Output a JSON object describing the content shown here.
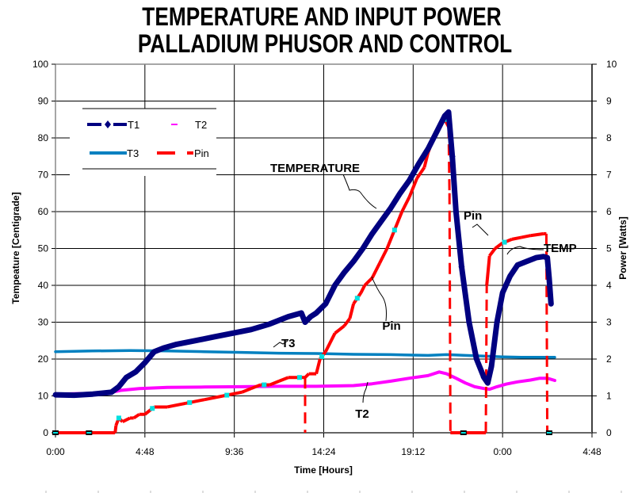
{
  "chart_data": {
    "type": "line",
    "title": [
      "TEMPERATURE AND INPUT POWER",
      "PALLADIUM PHUSOR AND CONTROL"
    ],
    "xlabel": "Time [Hours]",
    "ylabel": "Tempeature [Centigrade]",
    "y2label": "Power [Watts]",
    "xlim": [
      0,
      28.8
    ],
    "ylim": [
      0,
      100
    ],
    "y2lim": [
      0,
      10
    ],
    "x_ticks": [
      0,
      4.8,
      9.6,
      14.4,
      19.2,
      24,
      28.8
    ],
    "x_tick_labels": [
      "0:00",
      "4:48",
      "9:36",
      "14:24",
      "19:12",
      "0:00",
      "4:48"
    ],
    "y_ticks": [
      0,
      10,
      20,
      30,
      40,
      50,
      60,
      70,
      80,
      90,
      100
    ],
    "y2_ticks": [
      0,
      1,
      2,
      3,
      4,
      5,
      6,
      7,
      8,
      9,
      10
    ],
    "grid": true,
    "legend": {
      "placement": "top-left",
      "entries": [
        {
          "name": "T1",
          "color": "#000080",
          "style": "diamond-line"
        },
        {
          "name": "T2",
          "color": "#ff00ff",
          "style": "dash"
        },
        {
          "name": "T3",
          "color": "#0080c0",
          "style": "solid"
        },
        {
          "name": "Pin",
          "color": "#ff0000",
          "style": "long-dash"
        }
      ]
    },
    "series": [
      {
        "name": "T1",
        "axis": "left",
        "color": "#000080",
        "x": [
          0,
          1,
          2,
          3,
          3.4,
          3.8,
          4.3,
          4.8,
          5.3,
          5.8,
          6.5,
          7.5,
          8.5,
          9.5,
          10.5,
          11.5,
          12.5,
          13.2,
          13.4,
          13.7,
          14.0,
          14.5,
          15.0,
          15.5,
          16.0,
          16.5,
          17.0,
          17.5,
          18.0,
          18.5,
          19.0,
          19.5,
          20.0,
          20.5,
          20.9,
          21.1,
          21.3,
          21.5,
          21.8,
          22.2,
          22.6,
          23.0,
          23.2,
          23.4,
          23.7,
          24.0,
          24.4,
          24.8,
          25.3,
          25.8,
          26.2,
          26.4,
          26.5,
          26.6
        ],
        "y": [
          10.3,
          10.2,
          10.5,
          11.0,
          12.5,
          15.0,
          16.5,
          19.0,
          22.0,
          23.0,
          24.0,
          25.0,
          26.0,
          27.0,
          28.0,
          29.5,
          31.5,
          32.5,
          30.0,
          31.5,
          32.5,
          35.0,
          40.0,
          43.5,
          46.5,
          50.0,
          54.0,
          57.5,
          61.0,
          65.0,
          68.5,
          73.0,
          77.0,
          82.0,
          86.0,
          87.0,
          75.0,
          60.0,
          45.0,
          30.0,
          20.0,
          15.0,
          13.5,
          18.0,
          30.0,
          38.0,
          42.5,
          45.5,
          46.5,
          47.5,
          47.8,
          47.5,
          42.0,
          35.0
        ]
      },
      {
        "name": "T2",
        "axis": "left",
        "color": "#ff00ff",
        "x": [
          0,
          1,
          2,
          3,
          3.5,
          4.5,
          6,
          8,
          10,
          12,
          14,
          16,
          17,
          18,
          19,
          20,
          20.6,
          21,
          21.5,
          22,
          22.5,
          23,
          23.3,
          23.7,
          24.2,
          24.8,
          25.5,
          26.0,
          26.4,
          26.8
        ],
        "y": [
          10.5,
          10.6,
          10.7,
          11.0,
          11.5,
          12.0,
          12.3,
          12.4,
          12.5,
          12.6,
          12.6,
          12.8,
          13.3,
          14.0,
          14.8,
          15.5,
          16.5,
          16.0,
          14.8,
          13.5,
          12.5,
          12.0,
          11.8,
          12.5,
          13.2,
          13.8,
          14.3,
          14.8,
          14.8,
          14.2
        ]
      },
      {
        "name": "T3",
        "axis": "left",
        "color": "#0080c0",
        "x": [
          0,
          2,
          4,
          6,
          8,
          10,
          12,
          14,
          16,
          18,
          20,
          21,
          22,
          23,
          24,
          25,
          26,
          26.8
        ],
        "y": [
          22.0,
          22.2,
          22.3,
          22.2,
          22.0,
          21.8,
          21.6,
          21.5,
          21.3,
          21.2,
          21.0,
          21.2,
          21.0,
          20.8,
          20.6,
          20.5,
          20.5,
          20.5
        ]
      },
      {
        "name": "Pin",
        "axis": "right",
        "color": "#ff0000",
        "x": [
          0,
          3.2,
          3.25,
          3.4,
          3.6,
          4.0,
          4.2,
          4.5,
          4.8,
          5.3,
          6.0,
          7.0,
          8.0,
          9.0,
          10.0,
          10.5,
          11.0,
          11.5,
          12.0,
          12.5,
          13.0,
          13.4,
          13.6,
          14.0,
          14.2,
          14.5,
          15.0,
          15.5,
          15.8,
          16.0,
          16.4,
          16.6,
          17.0,
          17.4,
          17.8,
          18.2,
          18.6,
          19.0,
          19.4,
          19.8,
          20.0,
          20.3,
          20.6,
          20.9,
          21.1,
          21.15,
          21.2,
          23.1,
          23.15,
          23.3,
          23.6,
          24.0,
          24.5,
          25.0,
          25.5,
          26.2,
          26.35,
          26.4
        ],
        "y": [
          0,
          0,
          0.2,
          0.4,
          0.3,
          0.4,
          0.4,
          0.5,
          0.5,
          0.7,
          0.7,
          0.8,
          0.9,
          1.0,
          1.1,
          1.2,
          1.3,
          1.3,
          1.4,
          1.5,
          1.5,
          1.5,
          1.6,
          1.6,
          2.0,
          2.2,
          2.7,
          2.9,
          3.1,
          3.5,
          3.8,
          4.0,
          4.2,
          4.6,
          5.0,
          5.5,
          6.0,
          6.4,
          6.9,
          7.2,
          7.6,
          8.0,
          8.3,
          8.5,
          8.3,
          6.5,
          0,
          0,
          4.0,
          4.8,
          5.0,
          5.15,
          5.25,
          5.3,
          5.35,
          5.4,
          5.4,
          0
        ]
      }
    ],
    "annotations": [
      {
        "text": "TEMPERATURE",
        "x": 13.0,
        "y": 71.5
      },
      {
        "text": "Pin",
        "x": 17.3,
        "y": 29.5
      },
      {
        "text": "T3",
        "x": 12.4,
        "y": 24.0
      },
      {
        "text": "T2",
        "x": 16.0,
        "y": 5.5
      },
      {
        "text": "Pin",
        "x": 22.4,
        "y": 58.5
      },
      {
        "text": "TEMP",
        "x": 26.0,
        "y": 50.0
      }
    ]
  }
}
